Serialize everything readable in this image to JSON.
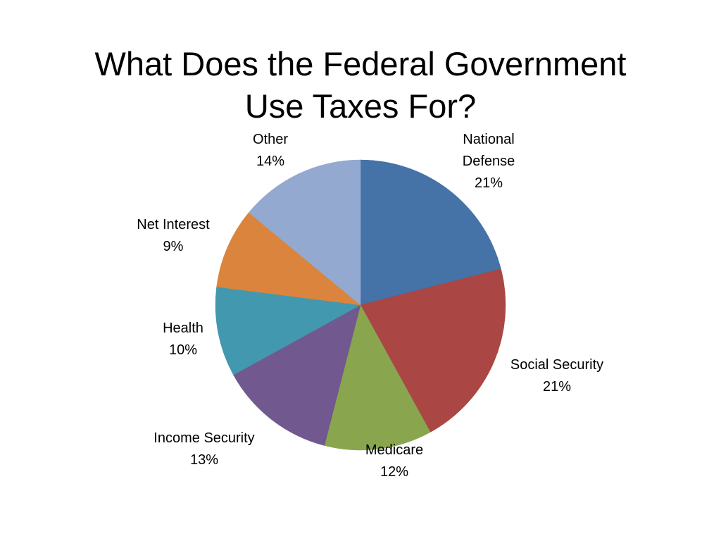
{
  "slide": {
    "title_line1": "What Does the Federal Government",
    "title_line2": "Use Taxes For?"
  },
  "chart_data": {
    "type": "pie",
    "title": "What Does the Federal Government Use Taxes For?",
    "start_angle_deg": 0,
    "direction": "clockwise",
    "slices": [
      {
        "label_lines": [
          "National",
          "Defense"
        ],
        "name": "National Defense",
        "value": 21,
        "value_label": "21%",
        "color": "#4572A7"
      },
      {
        "label_lines": [
          "Social Security"
        ],
        "name": "Social Security",
        "value": 21,
        "value_label": "21%",
        "color": "#AA4643"
      },
      {
        "label_lines": [
          "Medicare"
        ],
        "name": "Medicare",
        "value": 12,
        "value_label": "12%",
        "color": "#89A54E"
      },
      {
        "label_lines": [
          "Income Security"
        ],
        "name": "Income Security",
        "value": 13,
        "value_label": "13%",
        "color": "#71588F"
      },
      {
        "label_lines": [
          "Health"
        ],
        "name": "Health",
        "value": 10,
        "value_label": "10%",
        "color": "#4198AF"
      },
      {
        "label_lines": [
          "Net Interest"
        ],
        "name": "Net Interest",
        "value": 9,
        "value_label": "9%",
        "color": "#DB843D"
      },
      {
        "label_lines": [
          "Other"
        ],
        "name": "Other",
        "value": 14,
        "value_label": "14%",
        "color": "#93A9CF"
      }
    ]
  }
}
